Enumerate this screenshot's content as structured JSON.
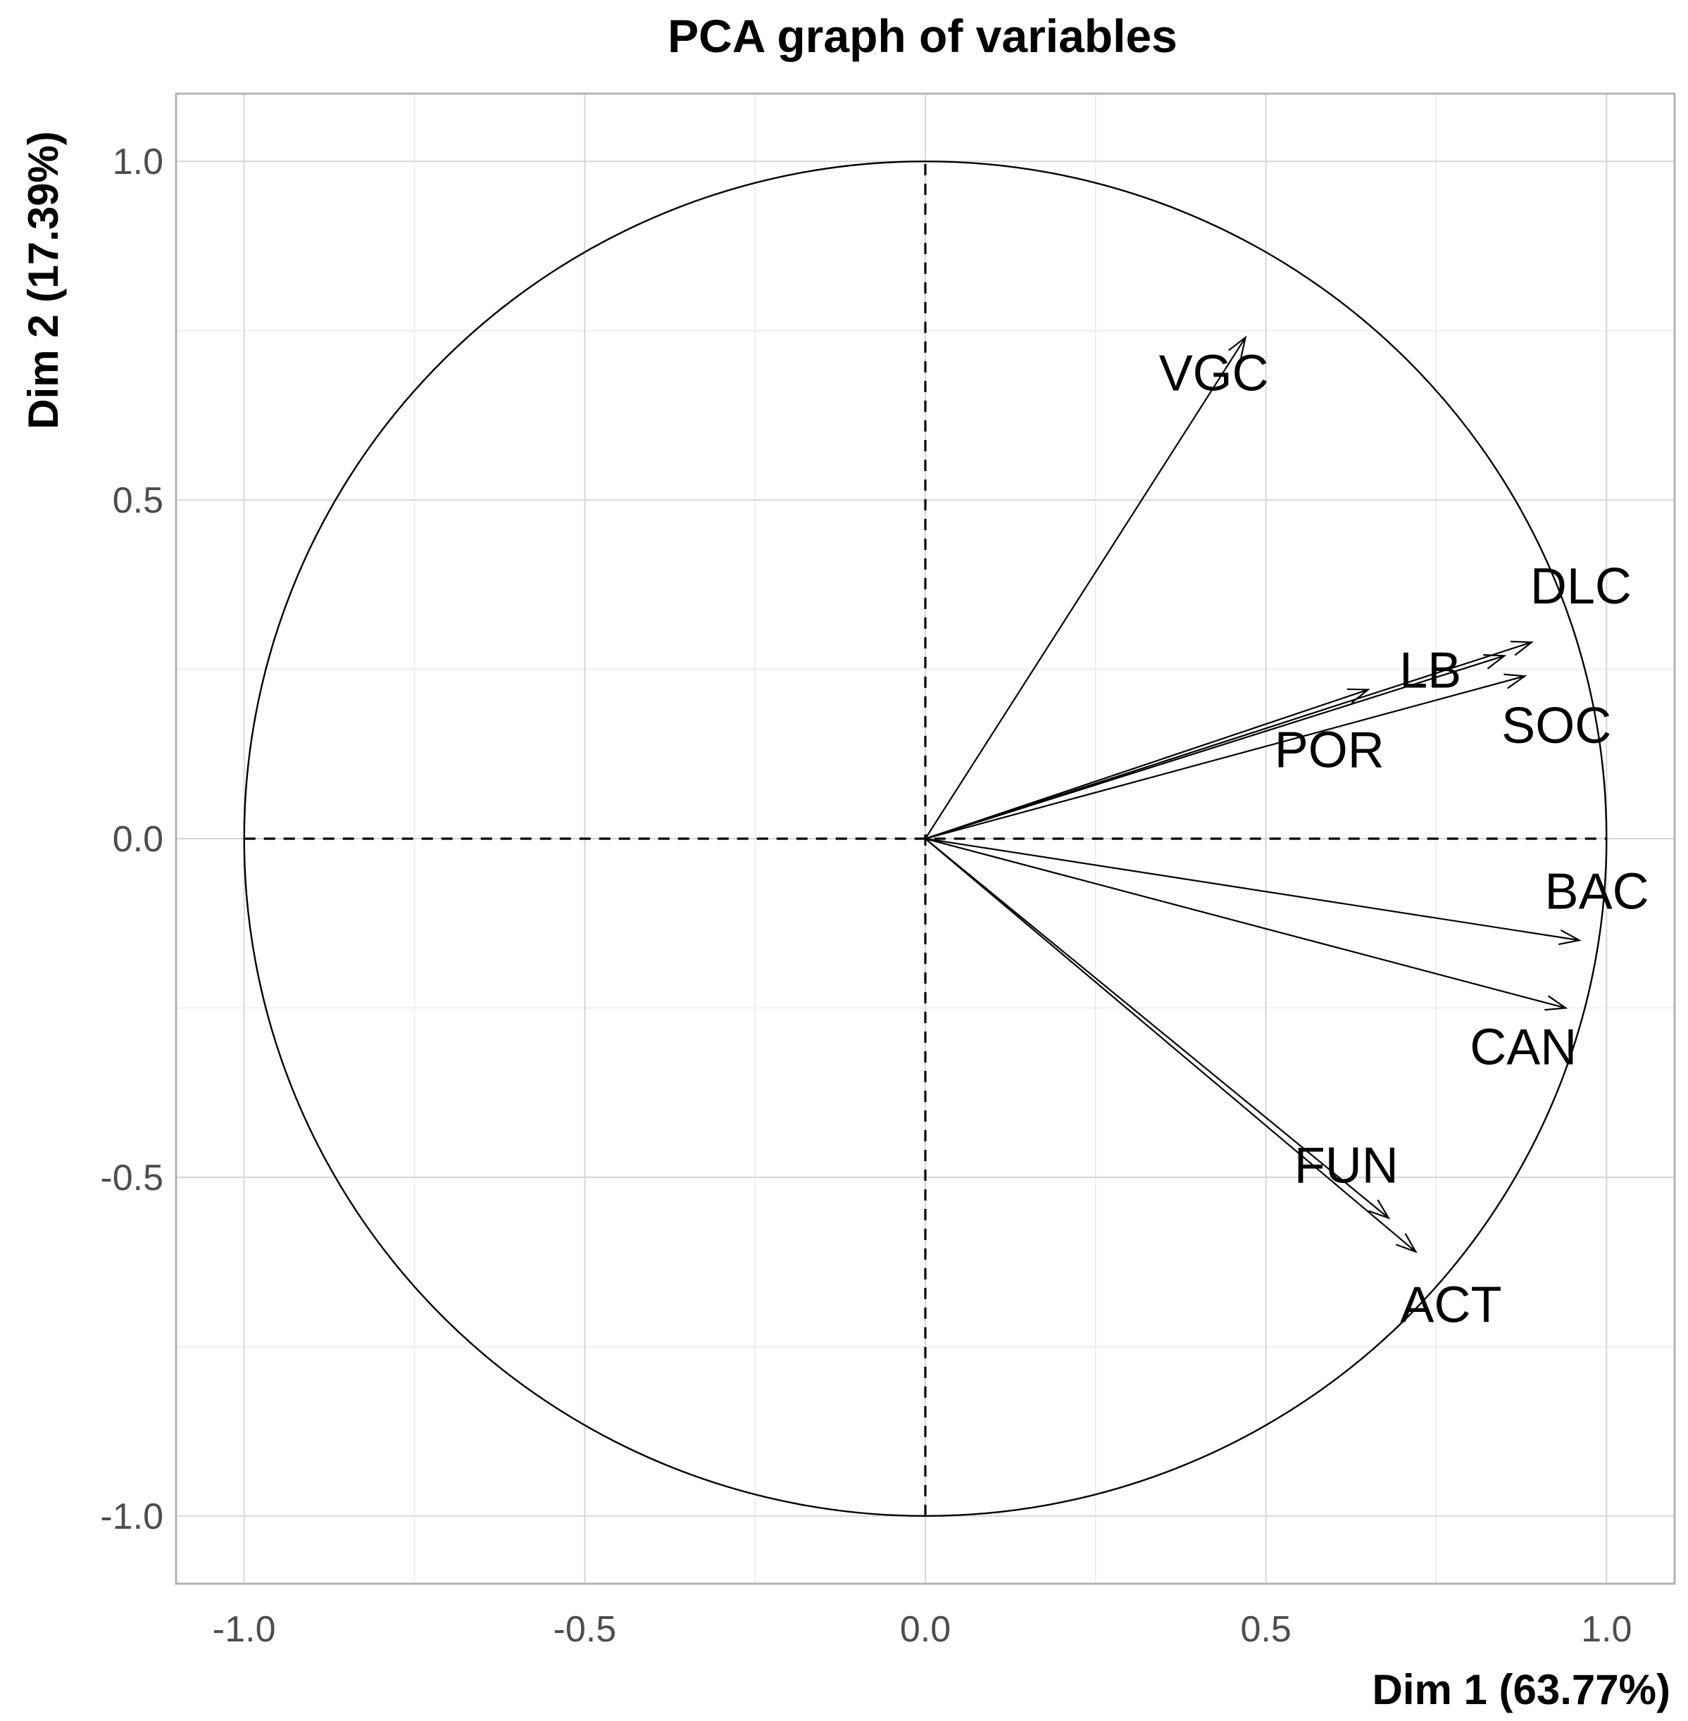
{
  "chart_data": {
    "type": "scatter",
    "subtype": "pca-correlation-circle",
    "title": "PCA graph of variables",
    "xlabel": "Dim 1 (63.77%)",
    "ylabel": "Dim 2 (17.39%)",
    "xlim": [
      -1.1,
      1.1
    ],
    "ylim": [
      -1.1,
      1.1
    ],
    "x_ticks": [
      -1.0,
      -0.5,
      0.0,
      0.5,
      1.0
    ],
    "y_ticks": [
      -1.0,
      -0.5,
      0.0,
      0.5,
      1.0
    ],
    "x_tick_labels": [
      "-1.0",
      "-0.5",
      "0.0",
      "0.5",
      "1.0"
    ],
    "y_tick_labels": [
      "-1.0",
      "-0.5",
      "0.0",
      "0.5",
      "1.0"
    ],
    "grid": true,
    "unit_circle": true,
    "variables": [
      {
        "name": "VGC",
        "x": 0.47,
        "y": 0.74
      },
      {
        "name": "DLC",
        "x": 0.89,
        "y": 0.29
      },
      {
        "name": "LB",
        "x": 0.85,
        "y": 0.27
      },
      {
        "name": "SOC",
        "x": 0.88,
        "y": 0.24
      },
      {
        "name": "POR",
        "x": 0.65,
        "y": 0.22
      },
      {
        "name": "BAC",
        "x": 0.96,
        "y": -0.15
      },
      {
        "name": "CAN",
        "x": 0.94,
        "y": -0.25
      },
      {
        "name": "FUN",
        "x": 0.68,
        "y": -0.56
      },
      {
        "name": "ACT",
        "x": 0.72,
        "y": -0.61
      }
    ]
  }
}
